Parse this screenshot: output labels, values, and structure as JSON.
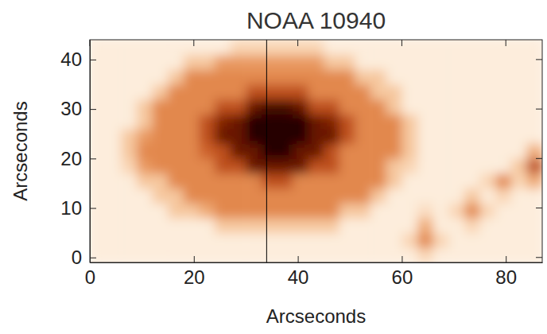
{
  "chart_data": {
    "type": "heatmap",
    "title": "NOAA 10940",
    "x_label": "Arcseconds",
    "y_label": "Arcseconds",
    "xlim": [
      0,
      87
    ],
    "ylim": [
      -1,
      44
    ],
    "xticks": [
      0,
      20,
      40,
      60,
      80
    ],
    "yticks": [
      0,
      10,
      20,
      30,
      40
    ],
    "zlim": [
      0.1,
      1.0
    ],
    "vertical_line_x": 34,
    "x": [
      1.5,
      4.5,
      7.5,
      10.5,
      13.5,
      16.5,
      19.5,
      22.5,
      25.5,
      28.5,
      31.5,
      34.5,
      37.5,
      40.5,
      43.5,
      46.5,
      49.5,
      52.5,
      55.5,
      58.5,
      61.5,
      64.5,
      67.5,
      70.5,
      73.5,
      76.5,
      79.5,
      82.5,
      85.5
    ],
    "y": [
      0.5,
      3.5,
      6.5,
      9.5,
      12.5,
      15.5,
      18.5,
      21.5,
      24.5,
      27.5,
      30.5,
      33.5,
      36.5,
      39.5,
      42.5
    ],
    "cells": [
      [
        0.95,
        0.95,
        0.95,
        0.95,
        0.95,
        0.95,
        0.95,
        0.95,
        0.95,
        0.95,
        0.95,
        0.95,
        0.95,
        0.95,
        0.95,
        0.95,
        0.95,
        0.95,
        0.95,
        0.95,
        0.95,
        0.85,
        0.95,
        0.95,
        0.95,
        0.95,
        0.95,
        0.95,
        0.95
      ],
      [
        0.95,
        0.95,
        0.95,
        0.95,
        0.95,
        0.95,
        0.95,
        0.95,
        0.95,
        0.95,
        0.95,
        0.95,
        0.95,
        0.95,
        0.95,
        0.95,
        0.95,
        0.95,
        0.95,
        0.95,
        0.85,
        0.6,
        0.85,
        0.95,
        0.95,
        0.95,
        0.95,
        0.95,
        0.95
      ],
      [
        0.95,
        0.95,
        0.95,
        0.95,
        0.95,
        0.95,
        0.95,
        0.95,
        0.8,
        0.8,
        0.8,
        0.8,
        0.8,
        0.8,
        0.8,
        0.8,
        0.95,
        0.95,
        0.95,
        0.95,
        0.95,
        0.7,
        0.95,
        0.95,
        0.85,
        0.95,
        0.95,
        0.95,
        0.95
      ],
      [
        0.95,
        0.95,
        0.95,
        0.95,
        0.95,
        0.8,
        0.8,
        0.7,
        0.6,
        0.6,
        0.6,
        0.6,
        0.6,
        0.6,
        0.6,
        0.6,
        0.8,
        0.8,
        0.95,
        0.95,
        0.95,
        0.88,
        0.95,
        0.85,
        0.6,
        0.85,
        0.95,
        0.95,
        0.95
      ],
      [
        0.95,
        0.95,
        0.95,
        0.95,
        0.8,
        0.8,
        0.6,
        0.6,
        0.6,
        0.6,
        0.6,
        0.6,
        0.6,
        0.6,
        0.6,
        0.6,
        0.6,
        0.6,
        0.8,
        0.95,
        0.95,
        0.95,
        0.95,
        0.95,
        0.8,
        0.95,
        0.85,
        0.95,
        0.95
      ],
      [
        0.95,
        0.95,
        0.95,
        0.8,
        0.8,
        0.6,
        0.6,
        0.6,
        0.6,
        0.6,
        0.6,
        0.45,
        0.45,
        0.6,
        0.6,
        0.6,
        0.6,
        0.6,
        0.6,
        0.8,
        0.95,
        0.95,
        0.95,
        0.95,
        0.95,
        0.85,
        0.6,
        0.85,
        0.7
      ],
      [
        0.95,
        0.95,
        0.85,
        0.65,
        0.6,
        0.6,
        0.6,
        0.6,
        0.45,
        0.45,
        0.25,
        0.25,
        0.25,
        0.25,
        0.45,
        0.45,
        0.6,
        0.6,
        0.6,
        0.8,
        0.85,
        0.95,
        0.95,
        0.95,
        0.95,
        0.95,
        0.95,
        0.8,
        0.45
      ],
      [
        0.95,
        0.95,
        0.8,
        0.6,
        0.6,
        0.6,
        0.6,
        0.5,
        0.45,
        0.25,
        0.25,
        0.12,
        0.12,
        0.25,
        0.25,
        0.45,
        0.6,
        0.6,
        0.6,
        0.6,
        0.8,
        0.95,
        0.95,
        0.95,
        0.95,
        0.95,
        0.95,
        0.95,
        0.7
      ],
      [
        0.95,
        0.95,
        0.8,
        0.65,
        0.6,
        0.6,
        0.6,
        0.45,
        0.25,
        0.25,
        0.12,
        0.12,
        0.12,
        0.12,
        0.25,
        0.25,
        0.45,
        0.6,
        0.6,
        0.6,
        0.8,
        0.95,
        0.95,
        0.95,
        0.95,
        0.95,
        0.95,
        0.95,
        0.95
      ],
      [
        0.95,
        0.95,
        0.95,
        0.8,
        0.6,
        0.6,
        0.6,
        0.45,
        0.3,
        0.25,
        0.12,
        0.12,
        0.12,
        0.12,
        0.25,
        0.3,
        0.45,
        0.6,
        0.6,
        0.6,
        0.8,
        0.95,
        0.95,
        0.95,
        0.95,
        0.95,
        0.95,
        0.95,
        0.95
      ],
      [
        0.95,
        0.95,
        0.95,
        0.8,
        0.6,
        0.6,
        0.6,
        0.6,
        0.45,
        0.45,
        0.25,
        0.18,
        0.18,
        0.25,
        0.45,
        0.45,
        0.6,
        0.6,
        0.6,
        0.8,
        0.95,
        0.95,
        0.95,
        0.95,
        0.95,
        0.95,
        0.95,
        0.95,
        0.95
      ],
      [
        0.95,
        0.95,
        0.95,
        0.95,
        0.8,
        0.6,
        0.6,
        0.6,
        0.6,
        0.6,
        0.45,
        0.45,
        0.45,
        0.45,
        0.6,
        0.6,
        0.6,
        0.6,
        0.8,
        0.8,
        0.95,
        0.95,
        0.95,
        0.95,
        0.95,
        0.95,
        0.95,
        0.95,
        0.95
      ],
      [
        0.95,
        0.95,
        0.95,
        0.95,
        0.95,
        0.8,
        0.6,
        0.6,
        0.6,
        0.6,
        0.6,
        0.6,
        0.6,
        0.6,
        0.6,
        0.6,
        0.6,
        0.8,
        0.8,
        0.95,
        0.95,
        0.95,
        0.95,
        0.95,
        0.95,
        0.95,
        0.95,
        0.95,
        0.95
      ],
      [
        0.95,
        0.95,
        0.95,
        0.95,
        0.95,
        0.95,
        0.8,
        0.8,
        0.65,
        0.65,
        0.65,
        0.65,
        0.65,
        0.65,
        0.65,
        0.8,
        0.8,
        0.95,
        0.95,
        0.95,
        0.95,
        0.95,
        0.95,
        0.95,
        0.95,
        0.95,
        0.95,
        0.95,
        0.95
      ],
      [
        0.95,
        0.95,
        0.95,
        0.95,
        0.95,
        0.95,
        0.95,
        0.95,
        0.95,
        0.85,
        0.85,
        0.85,
        0.85,
        0.85,
        0.85,
        0.95,
        0.95,
        0.95,
        0.95,
        0.95,
        0.95,
        0.95,
        0.95,
        0.95,
        0.95,
        0.95,
        0.95,
        0.95,
        0.95
      ]
    ]
  }
}
